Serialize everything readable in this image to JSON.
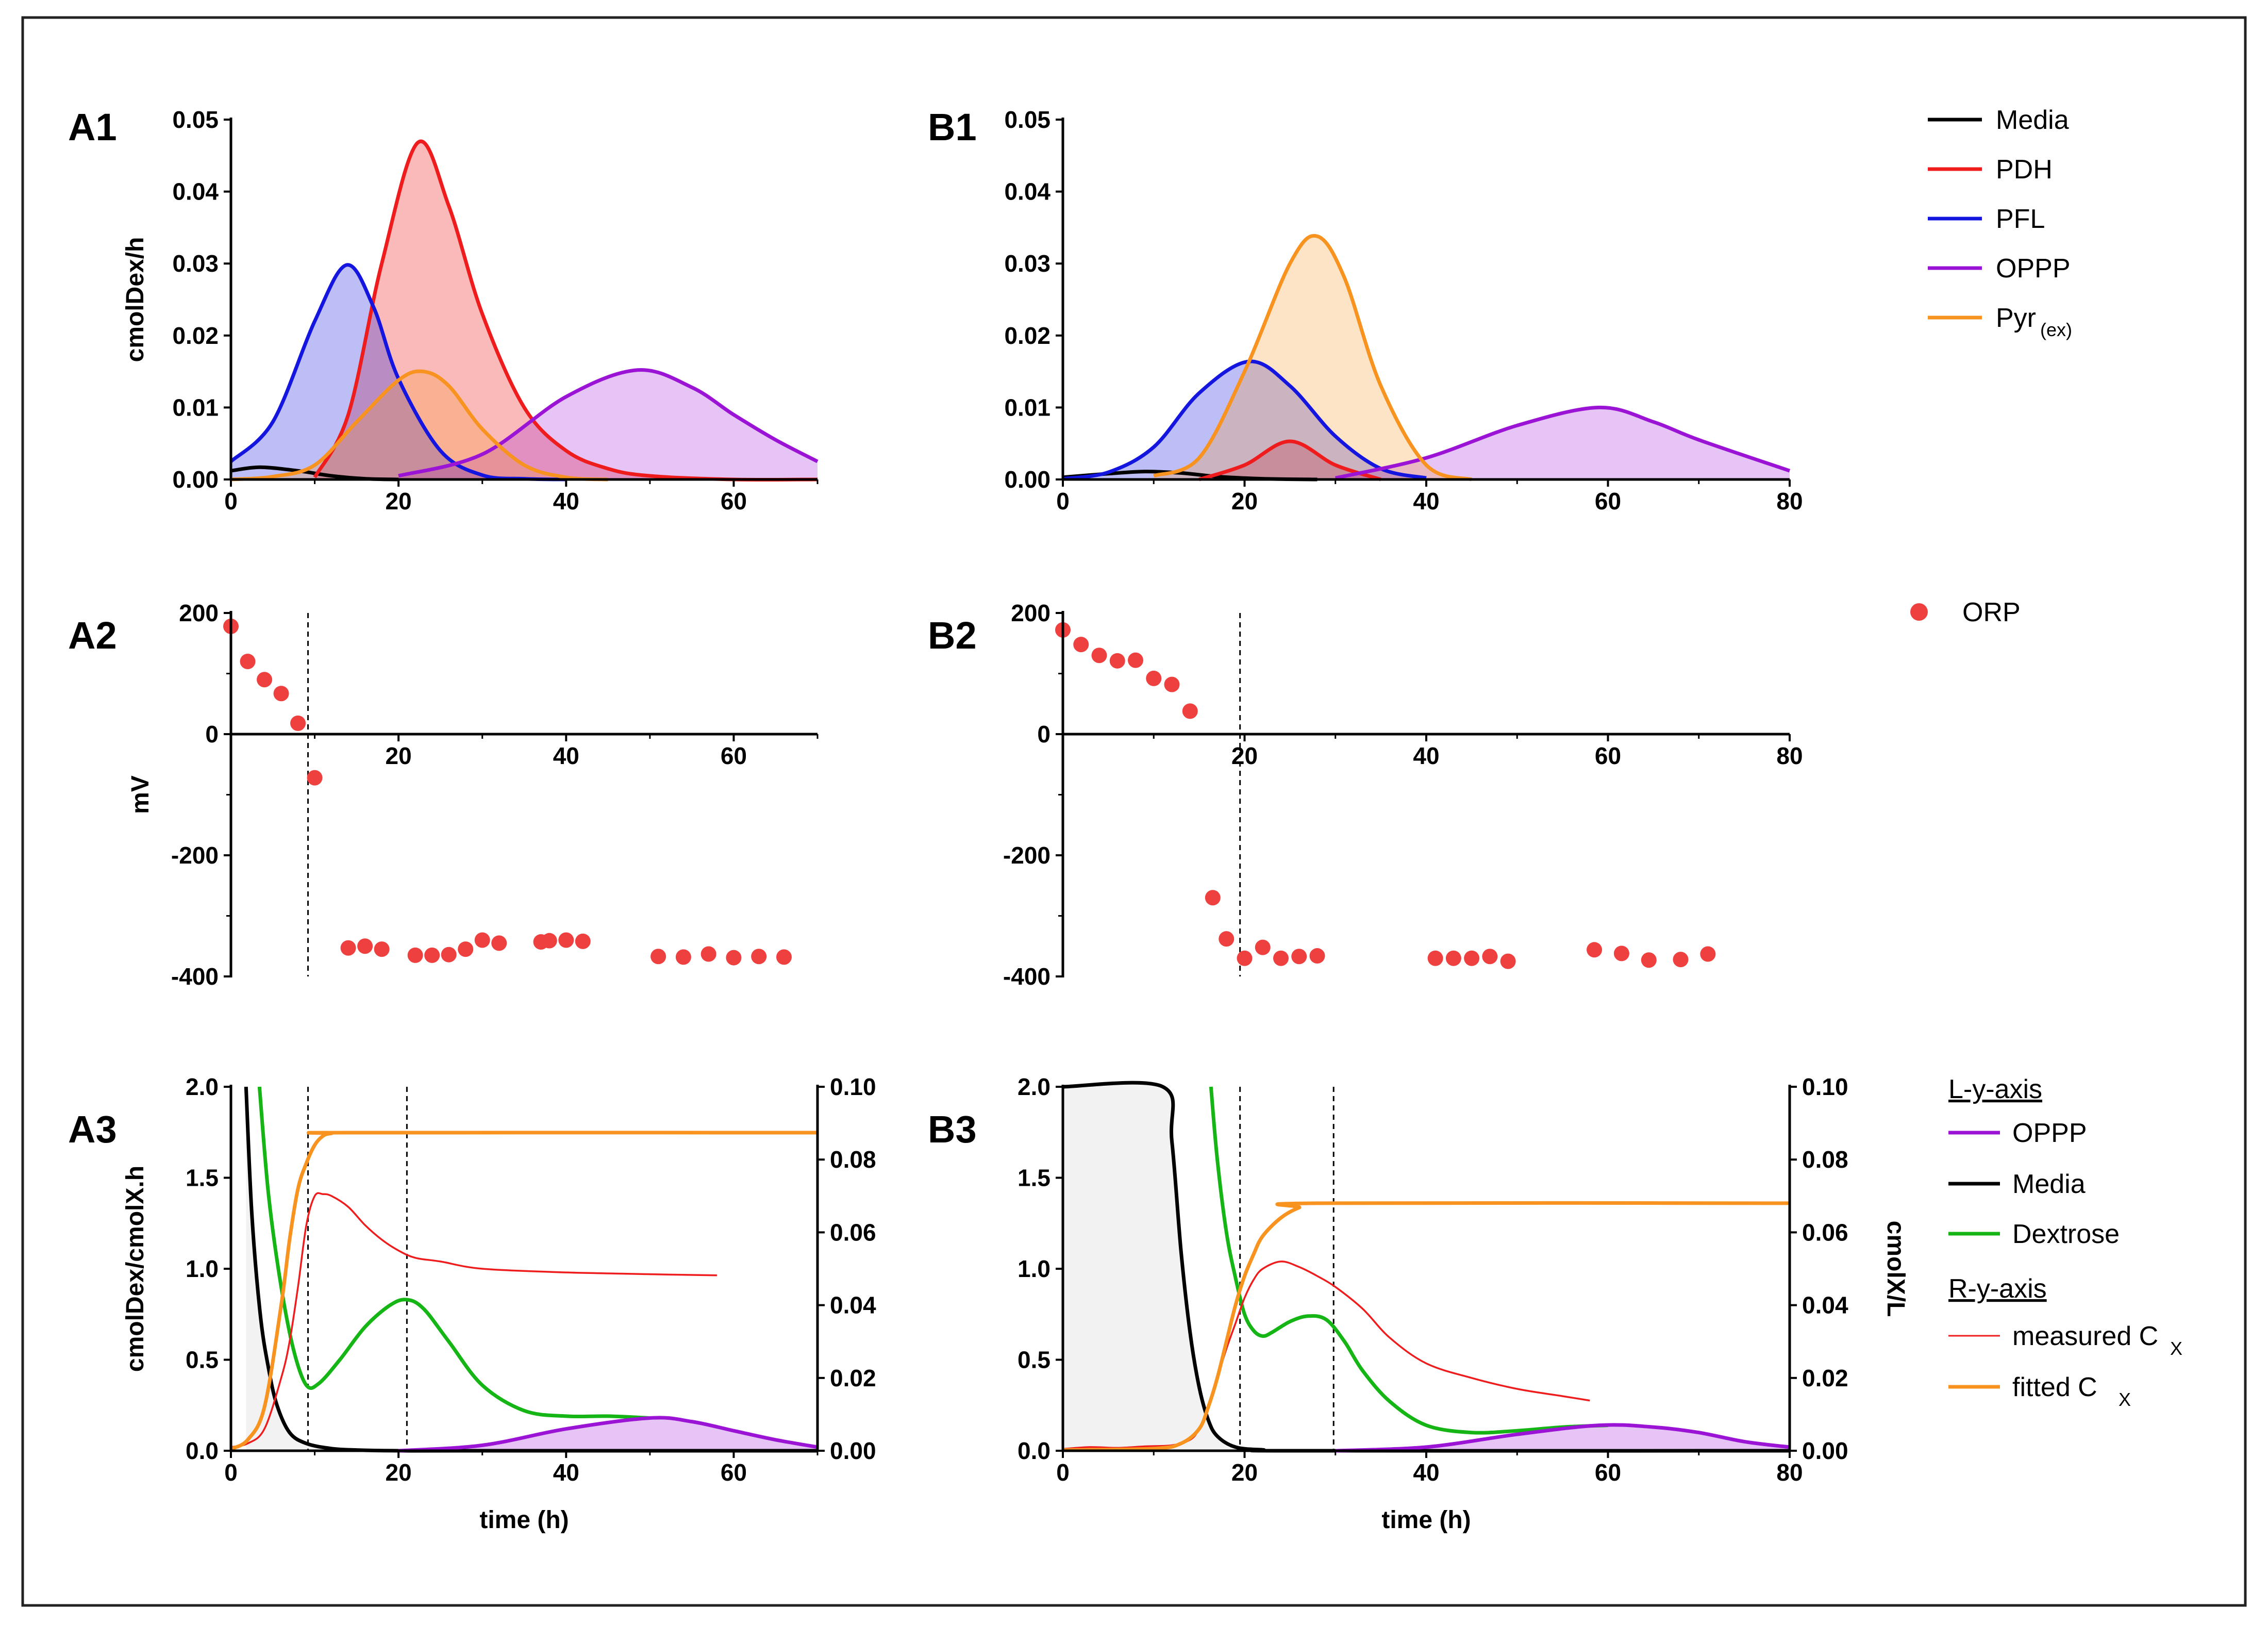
{
  "figure": {
    "panel_labels": {
      "A1": "A1",
      "A2": "A2",
      "A3": "A3",
      "B1": "B1",
      "B2": "B2",
      "B3": "B3"
    }
  },
  "colors": {
    "media": "#000000",
    "pdh": "#ee1c1c",
    "pfl": "#1515e0",
    "oppp": "#9b14d6",
    "pyr": "#f7931e",
    "orp": "#ef4040",
    "dextrose": "#16b516",
    "measured": "#ee1c1c",
    "fitted": "#f7931e",
    "shade": "#f2f2f2"
  },
  "legend_top": {
    "items": [
      {
        "label": "Media",
        "sub": "",
        "color": "#000000"
      },
      {
        "label": "PDH",
        "sub": "",
        "color": "#ee1c1c"
      },
      {
        "label": "PFL",
        "sub": "",
        "color": "#1515e0"
      },
      {
        "label": "OPPP",
        "sub": "",
        "color": "#9b14d6"
      },
      {
        "label": "Pyr",
        "sub": "(ex)",
        "color": "#f7931e"
      }
    ]
  },
  "legend_mid": {
    "label": "ORP",
    "color": "#ef4040"
  },
  "legend_bottom": {
    "header_left": "L-y-axis",
    "left_items": [
      {
        "label": "OPPP",
        "sub": "",
        "color": "#9b14d6"
      },
      {
        "label": "Media",
        "sub": "",
        "color": "#000000"
      },
      {
        "label": "Dextrose",
        "sub": "",
        "color": "#16b516"
      }
    ],
    "header_right": "R-y-axis",
    "right_items": [
      {
        "label": "measured C",
        "sub": "X",
        "color": "#ee1c1c",
        "thin": true
      },
      {
        "label": "fitted C",
        "sub": "X",
        "color": "#f7931e",
        "thin": false
      }
    ]
  },
  "chart_data": [
    {
      "id": "A1",
      "type": "area",
      "ylabel": "cmolDex/h",
      "xlabel": "",
      "xlim": [
        0,
        70
      ],
      "ylim": [
        0,
        0.05
      ],
      "xticks": [
        "0",
        "20",
        "40",
        "60"
      ],
      "yticks": [
        "0.00",
        "0.01",
        "0.02",
        "0.03",
        "0.04",
        "0.05"
      ],
      "series": [
        {
          "name": "Media",
          "peak_time": 3.5,
          "peak_value": 0.0017,
          "fill": false,
          "x": [
            0,
            3.5,
            8,
            12,
            16,
            20
          ],
          "y": [
            0.0012,
            0.0017,
            0.0012,
            0.0005,
            0.0001,
            0
          ]
        },
        {
          "name": "PDH",
          "peak_time": 22.3,
          "peak_value": 0.0468,
          "fill": true,
          "x": [
            10,
            14,
            18,
            22.3,
            26,
            30,
            35,
            40,
            45,
            50,
            60,
            70
          ],
          "y": [
            0.0003,
            0.009,
            0.03,
            0.0468,
            0.038,
            0.023,
            0.01,
            0.004,
            0.0015,
            0.0005,
            0,
            0
          ]
        },
        {
          "name": "PFL",
          "peak_time": 13.8,
          "peak_value": 0.0298,
          "fill": true,
          "x": [
            0,
            5,
            10,
            13.8,
            17,
            20,
            25,
            30,
            35,
            40
          ],
          "y": [
            0.0025,
            0.008,
            0.022,
            0.0298,
            0.024,
            0.014,
            0.004,
            0.0006,
            0.0001,
            0
          ]
        },
        {
          "name": "OPPP",
          "peak_time": 48.5,
          "peak_value": 0.0152,
          "fill": true,
          "x": [
            20,
            30,
            40,
            48.5,
            55,
            60,
            65,
            70
          ],
          "y": [
            0.0005,
            0.0035,
            0.0115,
            0.0152,
            0.0128,
            0.009,
            0.0055,
            0.0025
          ]
        },
        {
          "name": "Pyr(ex)",
          "peak_time": 23,
          "peak_value": 0.015,
          "fill": true,
          "x": [
            0,
            5,
            10,
            15,
            20,
            23,
            26,
            30,
            35,
            40,
            45
          ],
          "y": [
            0,
            0.0004,
            0.002,
            0.008,
            0.0138,
            0.015,
            0.013,
            0.007,
            0.002,
            0.0003,
            0
          ]
        }
      ]
    },
    {
      "id": "B1",
      "type": "area",
      "ylabel": "",
      "xlabel": "",
      "xlim": [
        0,
        80
      ],
      "ylim": [
        0,
        0.05
      ],
      "xticks": [
        "0",
        "20",
        "40",
        "60",
        "80"
      ],
      "yticks": [
        "0.00",
        "0.01",
        "0.02",
        "0.03",
        "0.04",
        "0.05"
      ],
      "series": [
        {
          "name": "Media",
          "peak_time": 9,
          "peak_value": 0.0011,
          "fill": false,
          "x": [
            0,
            5,
            9,
            13,
            17,
            22,
            28
          ],
          "y": [
            0.0003,
            0.0008,
            0.0011,
            0.0009,
            0.0004,
            0.0001,
            0
          ]
        },
        {
          "name": "PDH",
          "peak_time": 25,
          "peak_value": 0.0053,
          "fill": true,
          "x": [
            15,
            20,
            25,
            30,
            35
          ],
          "y": [
            0,
            0.002,
            0.0053,
            0.002,
            0
          ]
        },
        {
          "name": "PFL",
          "peak_time": 20.5,
          "peak_value": 0.0164,
          "fill": true,
          "x": [
            0,
            5,
            10,
            15,
            20.5,
            25,
            30,
            35,
            40
          ],
          "y": [
            0.0001,
            0.001,
            0.0045,
            0.012,
            0.0164,
            0.013,
            0.006,
            0.0015,
            0.0002
          ]
        },
        {
          "name": "OPPP",
          "peak_time": 59,
          "peak_value": 0.01,
          "fill": true,
          "x": [
            30,
            40,
            50,
            59,
            65,
            70,
            80
          ],
          "y": [
            0.0002,
            0.003,
            0.0075,
            0.01,
            0.008,
            0.0055,
            0.0012
          ]
        },
        {
          "name": "Pyr(ex)",
          "peak_time": 28,
          "peak_value": 0.0338,
          "fill": true,
          "x": [
            10,
            15,
            20,
            25,
            28,
            31,
            35,
            40,
            45
          ],
          "y": [
            0.0005,
            0.003,
            0.015,
            0.03,
            0.0338,
            0.028,
            0.013,
            0.002,
            0
          ]
        }
      ]
    },
    {
      "id": "A2",
      "type": "scatter",
      "ylabel": "mV",
      "xlabel": "",
      "xlim": [
        0,
        70
      ],
      "ylim": [
        -400,
        200
      ],
      "vlines": [
        9.2
      ],
      "xticks": [
        "20",
        "40",
        "60"
      ],
      "yticks": [
        "-400",
        "-200",
        "0",
        "200"
      ],
      "series": [
        {
          "name": "ORP",
          "x": [
            0,
            2,
            4,
            6,
            8,
            10,
            14,
            16,
            18,
            22,
            24,
            26,
            28,
            30,
            32,
            37,
            38,
            40,
            42,
            51,
            54,
            57,
            60,
            63,
            66
          ],
          "y": [
            178,
            120,
            90,
            67,
            18,
            -72,
            -353,
            -350,
            -355,
            -365,
            -365,
            -364,
            -355,
            -340,
            -345,
            -343,
            -341,
            -340,
            -342,
            -367,
            -368,
            -363,
            -369,
            -367,
            -368
          ]
        }
      ]
    },
    {
      "id": "B2",
      "type": "scatter",
      "ylabel": "",
      "xlabel": "",
      "xlim": [
        0,
        80
      ],
      "ylim": [
        -400,
        200
      ],
      "vlines": [
        19.5
      ],
      "xticks": [
        "20",
        "40",
        "60",
        "80"
      ],
      "yticks": [
        "-400",
        "-200",
        "0",
        "200"
      ],
      "series": [
        {
          "name": "ORP",
          "x": [
            0,
            2,
            4,
            6,
            8,
            10,
            12,
            14,
            16.5,
            18,
            20,
            22,
            24,
            26,
            28,
            41,
            43,
            45,
            47,
            49,
            58.5,
            61.5,
            64.5,
            68,
            71
          ],
          "y": [
            172,
            148,
            130,
            121,
            122,
            92,
            82,
            38,
            -270,
            -338,
            -370,
            -352,
            -370,
            -367,
            -366,
            -370,
            -370,
            -370,
            -367,
            -375,
            -356,
            -362,
            -373,
            -372,
            -363
          ]
        }
      ]
    },
    {
      "id": "A3",
      "type": "line",
      "ylabel": "cmolDex/cmolX.h",
      "ylabel_right": "",
      "xlabel": "time (h)",
      "xlim": [
        0,
        70
      ],
      "ylim": [
        0,
        2
      ],
      "ylim_right": [
        0,
        0.1
      ],
      "vlines": [
        9.2,
        21
      ],
      "xticks": [
        "0",
        "20",
        "40",
        "60"
      ],
      "yticks": [
        "0.0",
        "0.5",
        "1.0",
        "1.5",
        "2.0"
      ],
      "yticks_right": [
        "0.00",
        "0.02",
        "0.04",
        "0.06",
        "0.08",
        "0.10"
      ],
      "series": [
        {
          "name": "Media",
          "axis": "left",
          "fill": true,
          "x": [
            1.8,
            2.5,
            3.5,
            4.5,
            5.5,
            7,
            9,
            12,
            15,
            20,
            30,
            70
          ],
          "y": [
            2.0,
            1.3,
            0.75,
            0.45,
            0.25,
            0.1,
            0.04,
            0.012,
            0.004,
            0,
            0,
            0
          ]
        },
        {
          "name": "Dextrose",
          "axis": "left",
          "x": [
            3.4,
            4.5,
            6,
            7.5,
            9,
            10.5,
            13,
            16,
            19,
            21,
            23,
            26,
            30,
            35,
            40,
            45,
            50
          ],
          "y": [
            2.0,
            1.4,
            0.9,
            0.55,
            0.36,
            0.37,
            0.5,
            0.68,
            0.8,
            0.83,
            0.78,
            0.6,
            0.36,
            0.22,
            0.19,
            0.19,
            0.18
          ]
        },
        {
          "name": "OPPP",
          "axis": "left",
          "fill": true,
          "x": [
            20,
            30,
            40,
            50,
            55,
            60,
            65,
            70
          ],
          "y": [
            0,
            0.03,
            0.12,
            0.18,
            0.16,
            0.11,
            0.06,
            0.02
          ]
        },
        {
          "name": "measured CX",
          "axis": "right",
          "x": [
            0,
            2,
            4,
            6,
            7,
            8,
            9,
            10,
            11,
            12,
            14,
            16,
            18,
            20,
            22,
            25,
            30,
            40,
            50,
            58
          ],
          "y": [
            0.001,
            0.002,
            0.006,
            0.02,
            0.03,
            0.045,
            0.062,
            0.07,
            0.0705,
            0.07,
            0.067,
            0.062,
            0.058,
            0.055,
            0.053,
            0.052,
            0.05,
            0.049,
            0.0485,
            0.0482
          ]
        },
        {
          "name": "fitted CX",
          "axis": "right",
          "x": [
            0,
            2,
            4,
            6,
            7,
            8,
            9,
            10,
            11,
            12,
            14,
            70
          ],
          "y": [
            0.0005,
            0.003,
            0.012,
            0.04,
            0.058,
            0.072,
            0.079,
            0.084,
            0.0865,
            0.0872,
            0.0874,
            0.0874
          ]
        }
      ]
    },
    {
      "id": "B3",
      "type": "line",
      "ylabel": "",
      "ylabel_right": "cmolX/L",
      "xlabel": "time (h)",
      "xlim": [
        0,
        80
      ],
      "ylim": [
        0,
        2
      ],
      "ylim_right": [
        0,
        0.1
      ],
      "vlines": [
        19.5,
        29.8
      ],
      "xticks": [
        "0",
        "20",
        "40",
        "60",
        "80"
      ],
      "yticks": [
        "0.0",
        "0.5",
        "1.0",
        "1.5",
        "2.0"
      ],
      "yticks_right": [
        "0.00",
        "0.02",
        "0.04",
        "0.06",
        "0.08",
        "0.10"
      ],
      "series": [
        {
          "name": "Media",
          "axis": "left",
          "fill": true,
          "x": [
            0,
            11,
            12,
            13,
            14,
            15,
            16,
            17,
            19,
            22,
            26,
            80
          ],
          "y": [
            2.0,
            2.0,
            1.7,
            1.1,
            0.65,
            0.35,
            0.17,
            0.08,
            0.02,
            0.005,
            0,
            0
          ]
        },
        {
          "name": "Dextrose",
          "axis": "left",
          "x": [
            16.3,
            17,
            18,
            19,
            20,
            21,
            22,
            23,
            25,
            27,
            29,
            31,
            33,
            36,
            40,
            45,
            50,
            55,
            60
          ],
          "y": [
            2.0,
            1.6,
            1.2,
            0.95,
            0.75,
            0.66,
            0.63,
            0.65,
            0.71,
            0.74,
            0.72,
            0.6,
            0.44,
            0.27,
            0.14,
            0.1,
            0.11,
            0.13,
            0.14
          ]
        },
        {
          "name": "OPPP",
          "axis": "left",
          "fill": true,
          "x": [
            30,
            40,
            50,
            59,
            65,
            70,
            75,
            80
          ],
          "y": [
            0,
            0.02,
            0.09,
            0.14,
            0.13,
            0.1,
            0.05,
            0.02
          ]
        },
        {
          "name": "measured CX",
          "axis": "right",
          "x": [
            0,
            3,
            6,
            9,
            12,
            14,
            15,
            16,
            17,
            18,
            19,
            20,
            21,
            22,
            24,
            26,
            28,
            30,
            33,
            36,
            40,
            45,
            50,
            55,
            58
          ],
          "y": [
            0.0005,
            0.001,
            0.0008,
            0.0012,
            0.0015,
            0.003,
            0.006,
            0.012,
            0.02,
            0.028,
            0.035,
            0.042,
            0.047,
            0.05,
            0.052,
            0.0505,
            0.048,
            0.045,
            0.039,
            0.031,
            0.024,
            0.02,
            0.017,
            0.015,
            0.0138
          ]
        },
        {
          "name": "fitted CX",
          "axis": "right",
          "x": [
            0,
            10,
            13,
            15,
            16,
            17,
            18,
            19,
            20,
            21,
            22,
            24,
            26,
            28,
            80
          ],
          "y": [
            0.0002,
            0.0006,
            0.002,
            0.006,
            0.012,
            0.02,
            0.03,
            0.04,
            0.048,
            0.054,
            0.059,
            0.064,
            0.0668,
            0.068,
            0.068
          ]
        }
      ]
    }
  ]
}
